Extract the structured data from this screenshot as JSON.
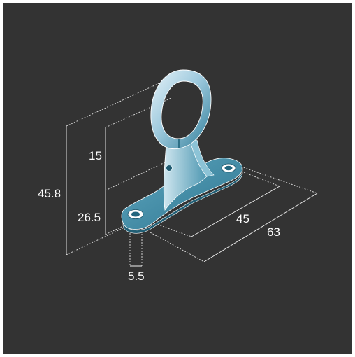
{
  "dimensions": {
    "total_height": "45.8",
    "ring_height": "15",
    "base_height": "26.5",
    "hole_diameter": "5.5",
    "hole_spacing": "45",
    "base_length": "63"
  },
  "colors": {
    "background": "#333333",
    "part_fill": "#3d8ea8",
    "part_light": "#b9dbe8",
    "dimension_text": "#ffffff"
  },
  "icons": {
    "part": "bracket-isometric-drawing"
  }
}
